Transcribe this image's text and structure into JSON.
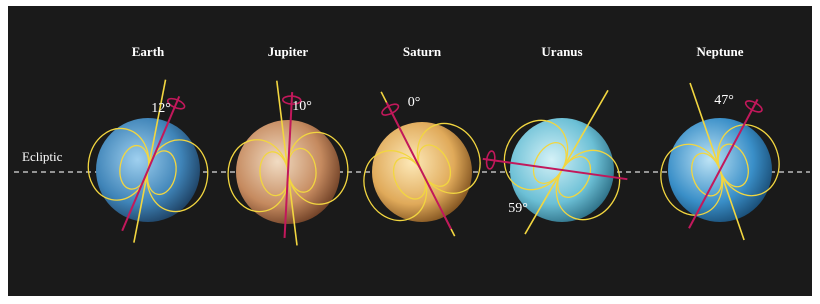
{
  "ecliptic_label": "Ecliptic",
  "planets": [
    {
      "name": "Earth",
      "angle": "12°"
    },
    {
      "name": "Jupiter",
      "angle": "10°"
    },
    {
      "name": "Saturn",
      "angle": "0°"
    },
    {
      "name": "Uranus",
      "angle": "59°"
    },
    {
      "name": "Neptune",
      "angle": "47°"
    }
  ]
}
